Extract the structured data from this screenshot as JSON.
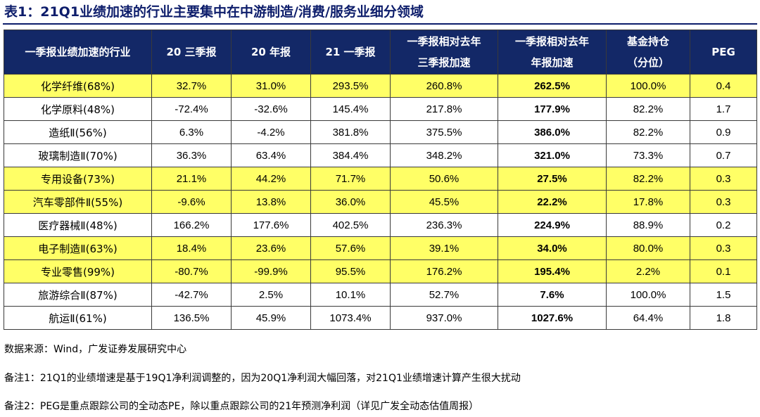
{
  "title": "表1：21Q1业绩加速的行业主要集中在中游制造/消费/服务业细分领域",
  "table": {
    "headers": [
      [
        "一季报业绩加速的行业"
      ],
      [
        "20 三季报"
      ],
      [
        "20 年报"
      ],
      [
        "21 一季报"
      ],
      [
        "一季报相对去年",
        "三季报加速"
      ],
      [
        "一季报相对去年",
        "年报加速"
      ],
      [
        "基金持仓",
        "（分位）"
      ],
      [
        "PEG"
      ]
    ],
    "rows": [
      {
        "highlight": true,
        "cells": [
          "化学纤维(68%)",
          "32.7%",
          "31.0%",
          "293.5%",
          "260.8%",
          "262.5%",
          "100.0%",
          "0.4"
        ]
      },
      {
        "highlight": false,
        "cells": [
          "化学原料(48%)",
          "-72.4%",
          "-32.6%",
          "145.4%",
          "217.8%",
          "177.9%",
          "82.2%",
          "1.7"
        ]
      },
      {
        "highlight": false,
        "cells": [
          "造纸Ⅱ(56%)",
          "6.3%",
          "-4.2%",
          "381.8%",
          "375.5%",
          "386.0%",
          "82.2%",
          "0.9"
        ]
      },
      {
        "highlight": false,
        "cells": [
          "玻璃制造Ⅱ(70%)",
          "36.3%",
          "63.4%",
          "384.4%",
          "348.2%",
          "321.0%",
          "73.3%",
          "0.7"
        ]
      },
      {
        "highlight": true,
        "cells": [
          "专用设备(73%)",
          "21.1%",
          "44.2%",
          "71.7%",
          "50.6%",
          "27.5%",
          "82.2%",
          "0.3"
        ]
      },
      {
        "highlight": true,
        "cells": [
          "汽车零部件Ⅱ(55%)",
          "-9.6%",
          "13.8%",
          "36.0%",
          "45.5%",
          "22.2%",
          "17.8%",
          "0.3"
        ]
      },
      {
        "highlight": false,
        "cells": [
          "医疗器械Ⅱ(48%)",
          "166.2%",
          "177.6%",
          "402.5%",
          "236.3%",
          "224.9%",
          "88.9%",
          "0.2"
        ]
      },
      {
        "highlight": true,
        "cells": [
          "电子制造Ⅱ(63%)",
          "18.4%",
          "23.6%",
          "57.6%",
          "39.1%",
          "34.0%",
          "80.0%",
          "0.3"
        ]
      },
      {
        "highlight": true,
        "cells": [
          "专业零售(99%)",
          "-80.7%",
          "-99.9%",
          "95.5%",
          "176.2%",
          "195.4%",
          "2.2%",
          "0.1"
        ]
      },
      {
        "highlight": false,
        "cells": [
          "旅游综合Ⅱ(87%)",
          "-42.7%",
          "2.5%",
          "10.1%",
          "52.7%",
          "7.6%",
          "100.0%",
          "1.5"
        ]
      },
      {
        "highlight": false,
        "cells": [
          "航运Ⅱ(61%)",
          "136.5%",
          "45.9%",
          "1073.4%",
          "937.0%",
          "1027.6%",
          "64.4%",
          "1.8"
        ]
      }
    ]
  },
  "source": "数据来源：Wind，广发证券发展研究中心",
  "note1": "备注1：21Q1的业绩增速是基于19Q1净利润调整的，因为20Q1净利润大幅回落，对21Q1业绩增速计算产生很大扰动",
  "note2": "备注2：PEG是重点跟踪公司的全动态PE，除以重点跟踪公司的21年预测净利润（详见广发全动态估值周报）",
  "colors": {
    "header_bg": "#132867",
    "header_text": "#ffffff",
    "highlight_row": "#ffff66",
    "title_color": "#0d1d6b"
  }
}
